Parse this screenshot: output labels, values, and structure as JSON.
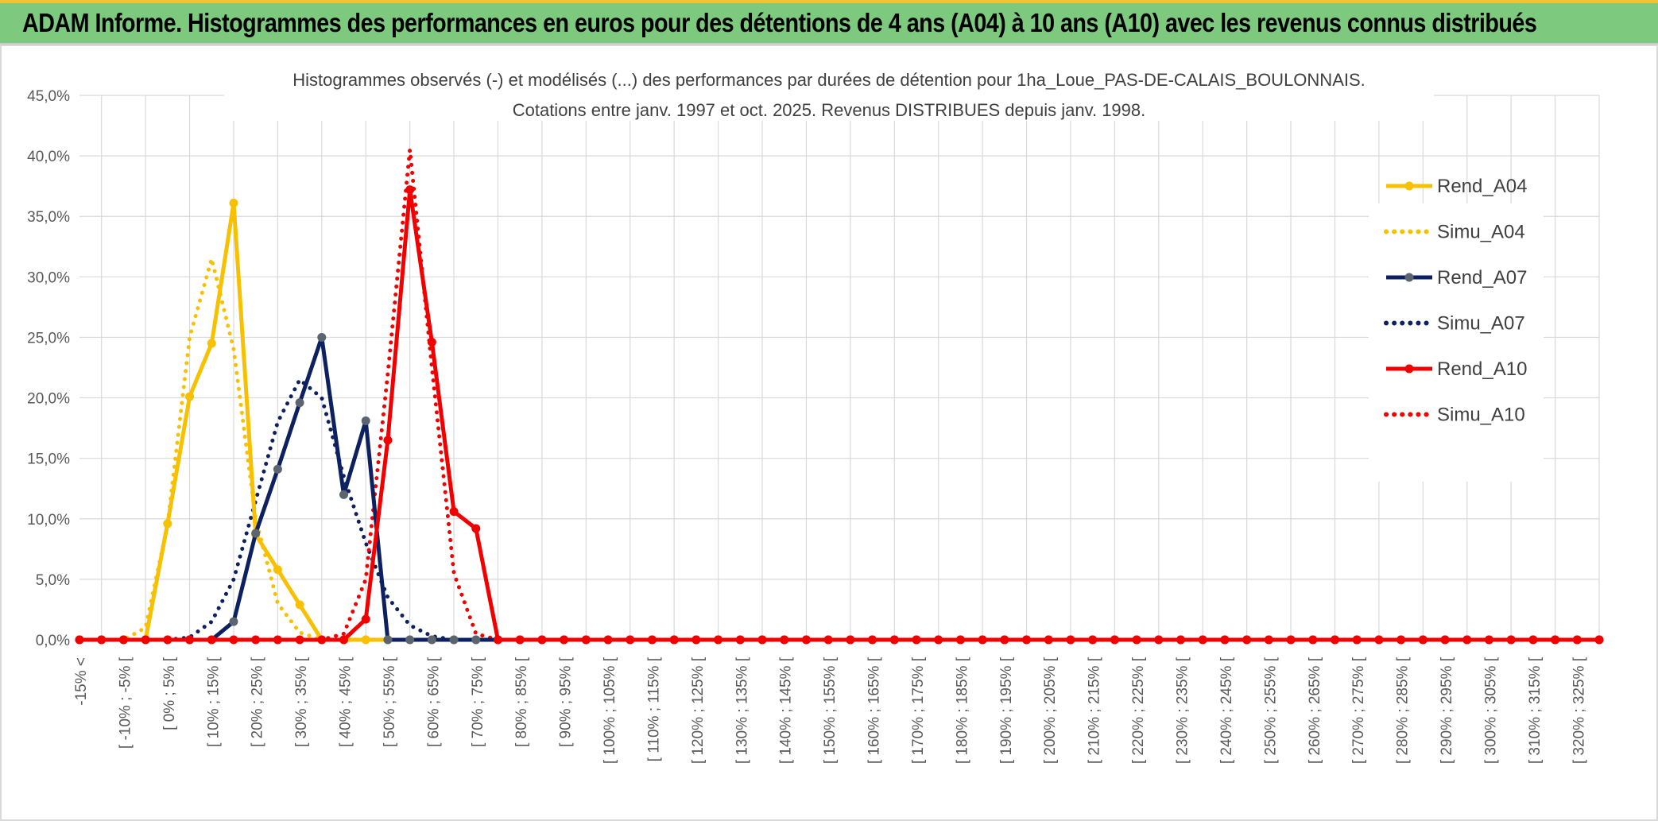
{
  "banner": {
    "title": "ADAM Informe. Histogrammes des performances en euros pour des détentions de 4 ans (A04) à 10 ans (A10) avec les revenus connus distribués"
  },
  "colors": {
    "banner_bg": "#7dc97d",
    "a04": "#f7c000",
    "a07": "#0d2160",
    "a07_marker": "#5a6570",
    "a10": "#f20000"
  },
  "chart_data": {
    "type": "line",
    "title": "Histogrammes observés (-) et modélisés (...) des performances par durées de détention pour 1ha_Loue_PAS-DE-CALAIS_BOULONNAIS.",
    "subtitle": "Cotations entre janv. 1997 et oct. 2025. Revenus DISTRIBUES depuis janv. 1998.",
    "ylim": [
      0,
      45
    ],
    "y_tick_labels": [
      "0,0%",
      "5,0%",
      "10,0%",
      "15,0%",
      "20,0%",
      "25,0%",
      "30,0%",
      "35,0%",
      "40,0%",
      "45,0%"
    ],
    "grid": true,
    "legend_position": "right",
    "category_labels": [
      "-15% <",
      "[ -10% ; -5% [",
      "[ 0% ; 5% [",
      "[ 10% ; 15% [",
      "[ 20% ; 25% [",
      "[ 30% ; 35% [",
      "[ 40% ; 45% [",
      "[ 50% ; 55% [",
      "[ 60% ; 65% [",
      "[ 70% ; 75% [",
      "[ 80% ; 85% [",
      "[ 90% ; 95% [",
      "[ 100% ; 105% [",
      "[ 110% ; 115% [",
      "[ 120% ; 125% [",
      "[ 130% ; 135% [",
      "[ 140% ; 145% [",
      "[ 150% ; 155% [",
      "[ 160% ; 165% [",
      "[ 170% ; 175% [",
      "[ 180% ; 185% [",
      "[ 190% ; 195% [",
      "[ 200% ; 205% [",
      "[ 210% ; 215% [",
      "[ 220% ; 225% [",
      "[ 230% ; 235% [",
      "[ 240% ; 245% [",
      "[ 250% ; 255% [",
      "[ 260% ; 265% [",
      "[ 270% ; 275% [",
      "[ 280% ; 285% [",
      "[ 290% ; 295% [",
      "[ 300% ; 305% [",
      "[ 310% ; 315% [",
      "[ 320% ; 325% ["
    ],
    "series": [
      {
        "name": "Rend_A04",
        "style": "solid",
        "markers": true,
        "color": "#f7c000",
        "values": [
          0,
          0,
          0,
          0,
          0,
          0,
          0,
          0,
          0,
          0,
          0,
          0,
          0,
          0,
          0,
          0,
          0,
          0,
          0,
          0,
          0,
          0,
          0,
          0,
          0,
          0,
          0,
          0,
          0,
          0,
          0,
          0,
          0,
          0,
          0,
          0,
          0,
          0,
          0,
          0,
          0,
          0,
          0,
          0,
          0,
          0,
          0,
          0,
          0,
          0,
          0,
          0,
          0,
          0,
          0,
          0,
          0,
          0,
          0,
          0,
          0,
          0,
          0,
          0,
          0,
          0,
          0,
          0,
          0,
          0
        ],
        "nonzero": {
          "4": 9.6,
          "5": 20.1,
          "6": 24.5,
          "7": 36.1,
          "8": 8.7,
          "9": 5.8,
          "10": 2.9
        }
      },
      {
        "name": "Simu_A04",
        "style": "dotted",
        "markers": false,
        "color": "#f7c000",
        "nonzero": {
          "3": 1.0,
          "4": 9.5,
          "5": 25.0,
          "6": 31.5,
          "7": 24.0,
          "8": 10.0,
          "9": 3.0,
          "10": 0.6
        }
      },
      {
        "name": "Rend_A07",
        "style": "solid",
        "markers": true,
        "color": "#0d2160",
        "nonzero": {
          "7": 1.5,
          "8": 8.8,
          "9": 14.1,
          "10": 19.6,
          "11": 25.0,
          "12": 12.0,
          "13": 18.1
        }
      },
      {
        "name": "Simu_A07",
        "style": "dotted",
        "markers": false,
        "color": "#0d2160",
        "nonzero": {
          "5": 0.2,
          "6": 1.5,
          "7": 5.0,
          "8": 11.5,
          "9": 18.0,
          "10": 21.5,
          "11": 20.0,
          "12": 13.5,
          "13": 8.0,
          "14": 3.5,
          "15": 1.2,
          "16": 0.3
        }
      },
      {
        "name": "Rend_A10",
        "style": "solid",
        "markers": true,
        "color": "#f20000",
        "nonzero": {
          "13": 1.7,
          "14": 16.5,
          "15": 37.2,
          "16": 24.6,
          "17": 10.6,
          "18": 9.2
        }
      },
      {
        "name": "Simu_A10",
        "style": "dotted",
        "markers": false,
        "color": "#f20000",
        "nonzero": {
          "12": 0.5,
          "13": 5.0,
          "14": 22.0,
          "15": 40.5,
          "16": 22.5,
          "17": 5.5,
          "18": 0.5
        }
      }
    ],
    "n_categories": 70
  }
}
